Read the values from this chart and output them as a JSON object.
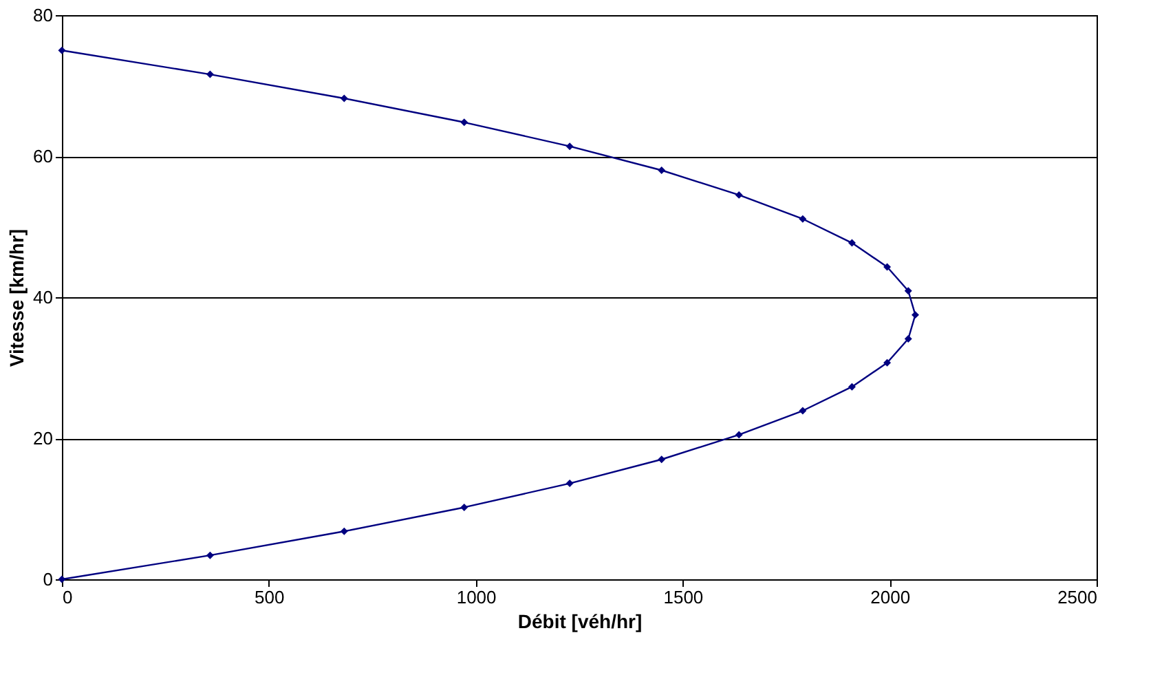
{
  "chart_data": {
    "type": "line",
    "xlabel": "Débit [véh/hr]",
    "ylabel": "Vitesse [km/hr]",
    "series": [
      {
        "color": "#000080",
        "x": [
          0,
          358,
          682,
          972,
          1227,
          1449,
          1636,
          1790,
          1909,
          1994,
          2045,
          2062,
          2045,
          1994,
          1909,
          1790,
          1636,
          1449,
          1227,
          972,
          682,
          358,
          0
        ],
        "values": [
          75,
          71.6,
          68.2,
          64.8,
          61.4,
          58.0,
          54.5,
          51.1,
          47.7,
          44.3,
          40.9,
          37.5,
          34.1,
          30.7,
          27.3,
          23.9,
          20.5,
          17.0,
          13.6,
          10.2,
          6.8,
          3.4,
          0
        ]
      }
    ],
    "xlim": [
      0,
      2500
    ],
    "xticks": [
      0,
      500,
      1000,
      1500,
      2000,
      2500
    ],
    "ylim": [
      0,
      80
    ],
    "yticks": [
      0,
      20,
      40,
      60,
      80
    ],
    "grid": "y",
    "marker": "diamond",
    "line_style": "solid"
  }
}
